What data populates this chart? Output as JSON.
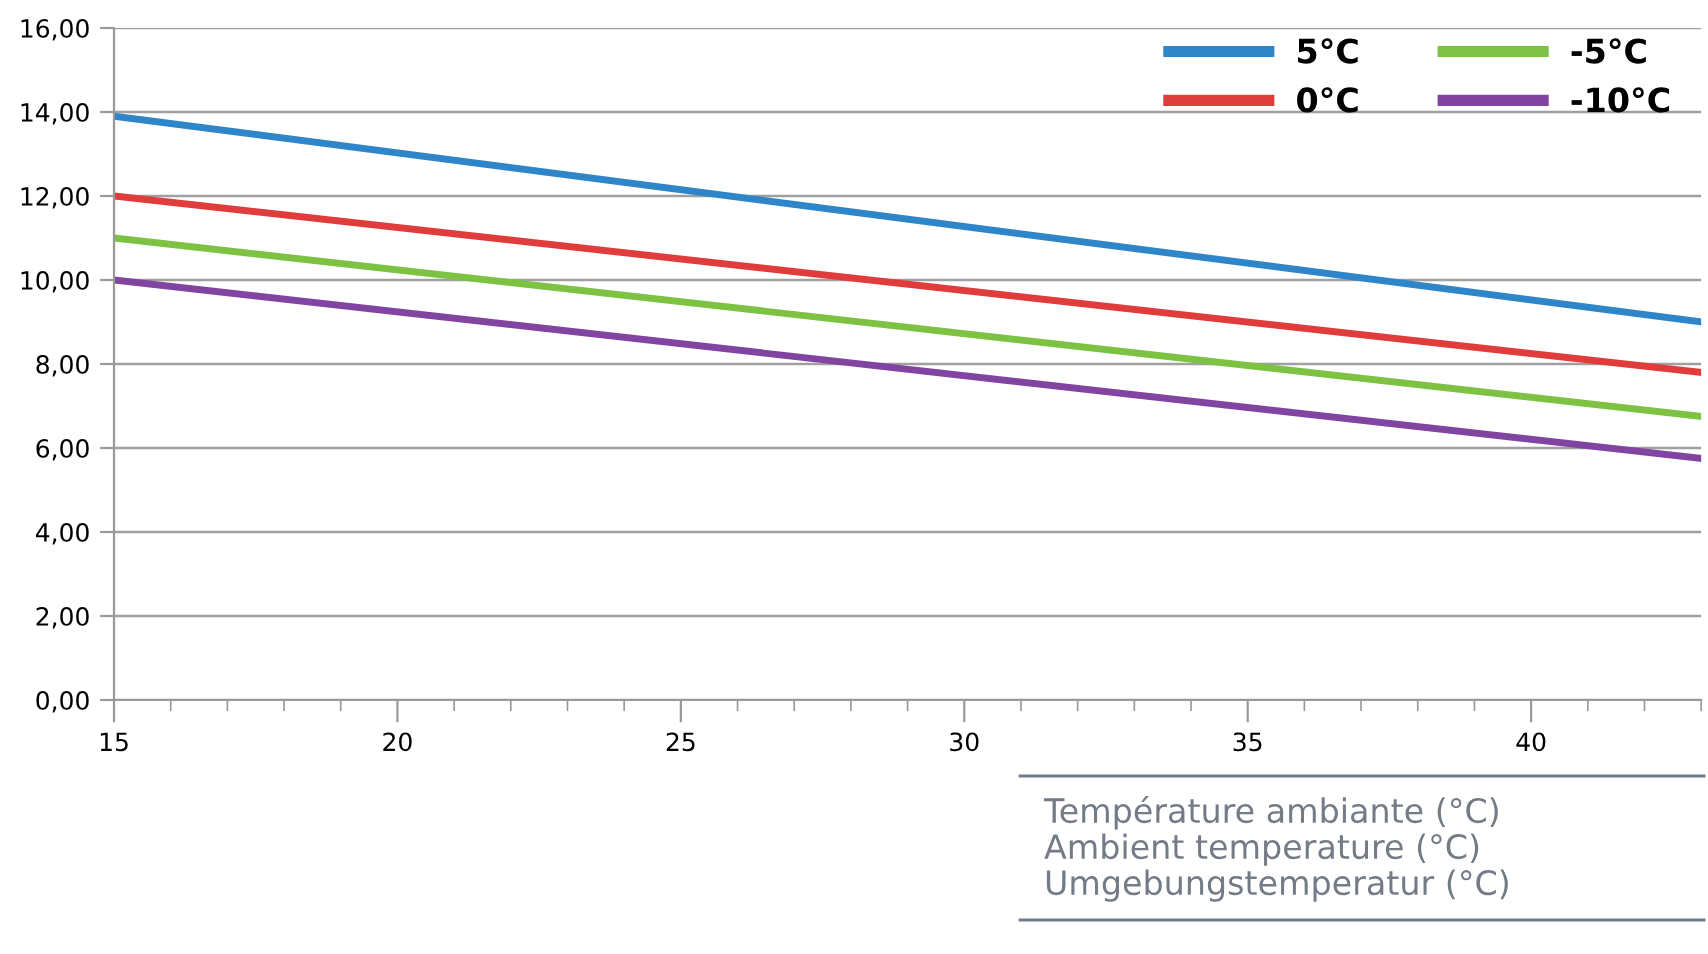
{
  "chart_data": {
    "type": "line",
    "xlabel": "Température ambiante (°C)\nAmbient temperature (°C)\nUmgebungstemperatur (°C)",
    "x": [
      15,
      43
    ],
    "series": [
      {
        "name": "5°C",
        "color": "#2e86c8",
        "values": [
          13.9,
          9.0
        ]
      },
      {
        "name": "-5°C",
        "color": "#7dc243",
        "values": [
          11.0,
          6.75
        ]
      },
      {
        "name": "0°C",
        "color": "#e03c3c",
        "values": [
          12.0,
          7.8
        ]
      },
      {
        "name": "-10°C",
        "color": "#8144a0",
        "values": [
          10.0,
          5.75
        ]
      }
    ],
    "xlim": [
      15,
      43
    ],
    "xticks": [
      15,
      20,
      25,
      30,
      35,
      40
    ],
    "ylim": [
      0,
      16
    ],
    "yticks": [
      {
        "value": 0,
        "label": "0,00"
      },
      {
        "value": 2,
        "label": "2,00"
      },
      {
        "value": 4,
        "label": "4,00"
      },
      {
        "value": 6,
        "label": "6,00"
      },
      {
        "value": 8,
        "label": "8,00"
      },
      {
        "value": 10,
        "label": "10,00"
      },
      {
        "value": 12,
        "label": "12,00"
      },
      {
        "value": 14,
        "label": "14,00"
      },
      {
        "value": 16,
        "label": "16,00"
      }
    ],
    "grid": "y",
    "legend": "top right",
    "marker": "none",
    "line_style": "solid"
  }
}
